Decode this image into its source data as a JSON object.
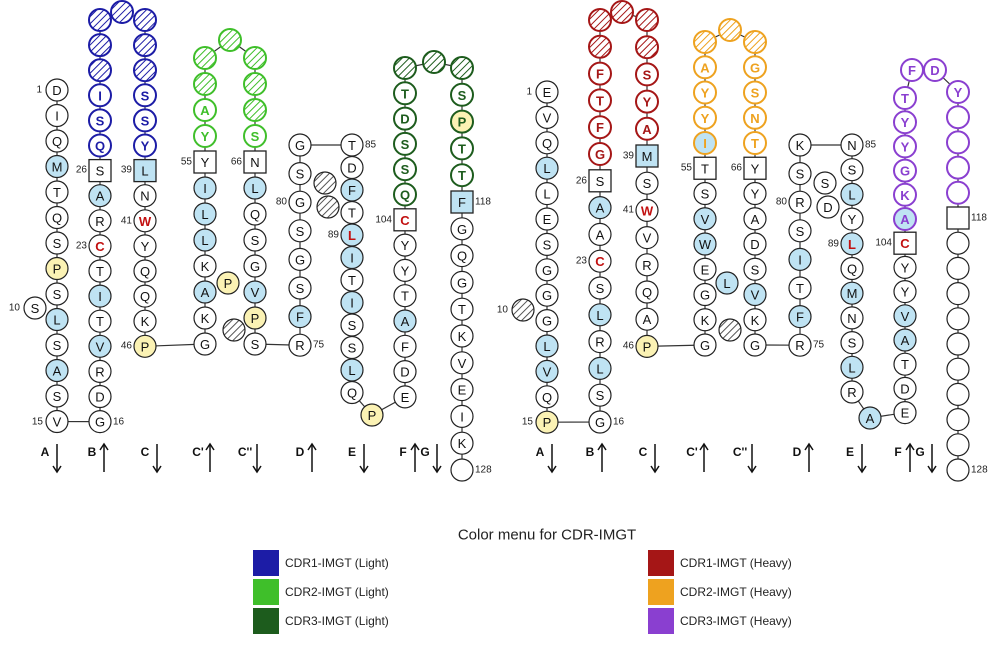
{
  "legend": {
    "title": "Color menu for CDR-IMGT",
    "items": [
      {
        "label": "CDR1-IMGT (Light)",
        "color": "#1c1ca6"
      },
      {
        "label": "CDR2-IMGT (Light)",
        "color": "#3fbf2a"
      },
      {
        "label": "CDR3-IMGT (Light)",
        "color": "#1d5c1d"
      },
      {
        "label": "CDR1-IMGT (Heavy)",
        "color": "#a51616"
      },
      {
        "label": "CDR2-IMGT (Heavy)",
        "color": "#eea21f"
      },
      {
        "label": "CDR3-IMGT (Heavy)",
        "color": "#8a3fd0"
      }
    ]
  },
  "panels": [
    {
      "columns": [
        {
          "aa": [
            "D",
            "I",
            "Q",
            "M",
            "T",
            "Q",
            "S",
            "P",
            "S",
            "L",
            "S",
            "A",
            "S",
            "V"
          ],
          "kind": [
            "w",
            "w",
            "w",
            "b",
            "w",
            "w",
            "w",
            "y",
            "w",
            "b",
            "w",
            "b",
            "w",
            "w"
          ]
        },
        {
          "aa": [
            "S"
          ],
          "kind": [
            "w"
          ]
        },
        {
          "aa": [
            null,
            null,
            null,
            "I",
            "S",
            "Q",
            "S",
            "A",
            "R",
            "C",
            "T",
            "I",
            "T",
            "V",
            "R",
            "D",
            "G"
          ],
          "kind": [
            "1h",
            "1h",
            "1h",
            "1",
            "1",
            "1",
            "s",
            "b",
            "w",
            "r",
            "w",
            "b",
            "w",
            "b",
            "w",
            "w",
            "w"
          ]
        },
        {
          "aa": [
            null
          ],
          "kind": [
            "1h"
          ]
        },
        {
          "aa": [
            null,
            null,
            null,
            "S",
            "S",
            "Y",
            "L",
            "N",
            "W",
            "Y",
            "Q",
            "Q",
            "K",
            "P"
          ],
          "kind": [
            "1h",
            "1h",
            "1h",
            "1",
            "1",
            "1",
            "sb",
            "w",
            "r",
            "w",
            "w",
            "w",
            "w",
            "y"
          ]
        },
        {
          "aa": [
            null,
            null,
            "A",
            "Y",
            "Y",
            "I",
            "L",
            "L",
            "K",
            "A",
            "K",
            "G"
          ],
          "kind": [
            "2h",
            "2h",
            "2",
            "2",
            "s",
            "b",
            "b",
            "b",
            "w",
            "b",
            "w",
            "w"
          ]
        },
        {
          "aa": [
            null
          ],
          "kind": [
            "2h"
          ]
        },
        {
          "aa": [
            null,
            null,
            null,
            "S",
            "N",
            "L",
            "Q",
            "S",
            "G",
            "V",
            "P",
            "S"
          ],
          "kind": [
            "2h",
            "2h",
            "2h",
            "2",
            "s",
            "b",
            "w",
            "w",
            "w",
            "b",
            "y",
            "w"
          ]
        },
        {
          "aa": [
            "P"
          ],
          "kind": [
            "y"
          ]
        },
        {
          "aa": [
            null
          ],
          "kind": [
            "h"
          ]
        },
        {
          "aa": [
            "G",
            "S",
            "G",
            "S",
            "G",
            "S",
            "F",
            "R"
          ],
          "kind": [
            "w",
            "w",
            "w",
            "w",
            "w",
            "w",
            "b",
            "w"
          ]
        },
        {
          "aa": [
            null,
            null
          ],
          "kind": [
            "h",
            "h"
          ]
        },
        {
          "aa": [
            "T",
            "D",
            "F",
            "T",
            "L",
            "I",
            "T",
            "I",
            "S",
            "S",
            "L",
            "Q"
          ],
          "kind": [
            "w",
            "w",
            "b",
            "w",
            "rb",
            "b",
            "w",
            "b",
            "w",
            "w",
            "b",
            "w"
          ]
        },
        {
          "aa": [
            "P"
          ],
          "kind": [
            "y"
          ]
        },
        {
          "aa": [
            null,
            "T",
            "D",
            "S",
            "S",
            "Q",
            "C",
            "Y",
            "Y",
            "T",
            "A",
            "F",
            "D",
            "E"
          ],
          "kind": [
            "3h",
            "3",
            "3",
            "3",
            "3",
            "3",
            "sr",
            "w",
            "w",
            "w",
            "b",
            "w",
            "w",
            "w"
          ]
        },
        {
          "aa": [
            null
          ],
          "kind": [
            "3h"
          ]
        },
        {
          "aa": [
            null,
            "S",
            "P",
            "T",
            "T",
            "F",
            "G",
            "Q",
            "G",
            "T",
            "K",
            "V",
            "E",
            "I",
            "K",
            null
          ],
          "kind": [
            "3h",
            "3",
            "3y",
            "3",
            "3",
            "sb",
            "w",
            "w",
            "w",
            "w",
            "w",
            "w",
            "w",
            "w",
            "w",
            "w"
          ]
        }
      ],
      "numbers": [
        1,
        10,
        15,
        16,
        23,
        26,
        39,
        41,
        46,
        55,
        66,
        75,
        80,
        85,
        89,
        104,
        118,
        128
      ],
      "strands": [
        "A",
        "B",
        "C",
        "C'",
        "C''",
        "D",
        "E",
        "F",
        "G"
      ]
    },
    {
      "columns": [
        {
          "aa": [
            "E",
            "V",
            "Q",
            "L",
            "L",
            "E",
            "S",
            "G",
            "G",
            "G",
            "L",
            "V",
            "Q",
            "P"
          ],
          "kind": [
            "w",
            "w",
            "w",
            "b",
            "w",
            "w",
            "w",
            "w",
            "w",
            "w",
            "b",
            "b",
            "w",
            "y"
          ]
        },
        {
          "aa": [
            null
          ],
          "kind": [
            "h"
          ]
        },
        {
          "aa": [
            null,
            null,
            "F",
            "T",
            "F",
            "G",
            "S",
            "A",
            "A",
            "C",
            "S",
            "L",
            "R",
            "L",
            "S",
            "G"
          ],
          "kind": [
            "1h",
            "1h",
            "1",
            "1",
            "1",
            "1",
            "s",
            "b",
            "w",
            "r",
            "w",
            "b",
            "w",
            "b",
            "w",
            "w"
          ]
        },
        {
          "aa": [
            null
          ],
          "kind": [
            "1h"
          ]
        },
        {
          "aa": [
            null,
            null,
            "S",
            "Y",
            "A",
            "M",
            "S",
            "W",
            "V",
            "R",
            "Q",
            "A",
            "P"
          ],
          "kind": [
            "1h",
            "1h",
            "1",
            "1",
            "1",
            "sb",
            "w",
            "r",
            "w",
            "w",
            "w",
            "w",
            "y"
          ]
        },
        {
          "aa": [
            null,
            "A",
            "Y",
            "Y",
            "I",
            "T",
            "S",
            "V",
            "W",
            "E",
            "G",
            "K",
            "G"
          ],
          "kind": [
            "2h",
            "2",
            "2",
            "2",
            "2b",
            "s",
            "w",
            "b",
            "b",
            "w",
            "w",
            "w",
            "w"
          ]
        },
        {
          "aa": [
            null
          ],
          "kind": [
            "2h"
          ]
        },
        {
          "aa": [
            null,
            "G",
            "S",
            "N",
            "T",
            "Y",
            "Y",
            "A",
            "D",
            "S",
            "V",
            "K",
            "G"
          ],
          "kind": [
            "2h",
            "2",
            "2",
            "2",
            "2",
            "s",
            "w",
            "w",
            "w",
            "w",
            "b",
            "w",
            "w"
          ]
        },
        {
          "aa": [
            "L"
          ],
          "kind": [
            "b"
          ]
        },
        {
          "aa": [
            null
          ],
          "kind": [
            "h"
          ]
        },
        {
          "aa": [
            "K",
            "S",
            "R",
            "S",
            "I",
            "T",
            "F",
            "R"
          ],
          "kind": [
            "w",
            "w",
            "w",
            "w",
            "b",
            "w",
            "b",
            "w"
          ]
        },
        {
          "aa": [
            "S",
            "D"
          ],
          "kind": [
            "w",
            "w"
          ]
        },
        {
          "aa": [
            "N",
            "S",
            "L",
            "Y",
            "L",
            "Q",
            "M",
            "N",
            "S",
            "L",
            "R"
          ],
          "kind": [
            "w",
            "w",
            "b",
            "w",
            "rb",
            "w",
            "b",
            "w",
            "w",
            "b",
            "w"
          ]
        },
        {
          "aa": [
            "A"
          ],
          "kind": [
            "b"
          ]
        },
        {
          "aa": [
            "T",
            "Y",
            "Y",
            "G",
            "K",
            "A",
            "C",
            "Y",
            "Y",
            "V",
            "A",
            "T",
            "D",
            "E"
          ],
          "kind": [
            "3",
            "3",
            "3",
            "3",
            "3",
            "3b",
            "sr",
            "w",
            "w",
            "b",
            "b",
            "w",
            "w",
            "w"
          ]
        },
        {
          "aa": [
            "F",
            "D"
          ],
          "kind": [
            "3",
            "3"
          ]
        },
        {
          "aa": [
            "Y",
            null,
            null,
            null,
            null,
            null,
            null,
            null,
            null,
            null,
            null,
            null,
            null,
            null,
            null,
            null
          ],
          "kind": [
            "3",
            "3",
            "3",
            "3",
            "3",
            "s",
            "w",
            "w",
            "w",
            "w",
            "w",
            "w",
            "w",
            "w",
            "w",
            "w"
          ]
        }
      ],
      "numbers": [
        1,
        10,
        15,
        16,
        23,
        26,
        39,
        41,
        46,
        55,
        66,
        75,
        80,
        85,
        89,
        104,
        118,
        128
      ],
      "strands": [
        "A",
        "B",
        "C",
        "C'",
        "C''",
        "D",
        "E",
        "F",
        "G"
      ]
    }
  ]
}
